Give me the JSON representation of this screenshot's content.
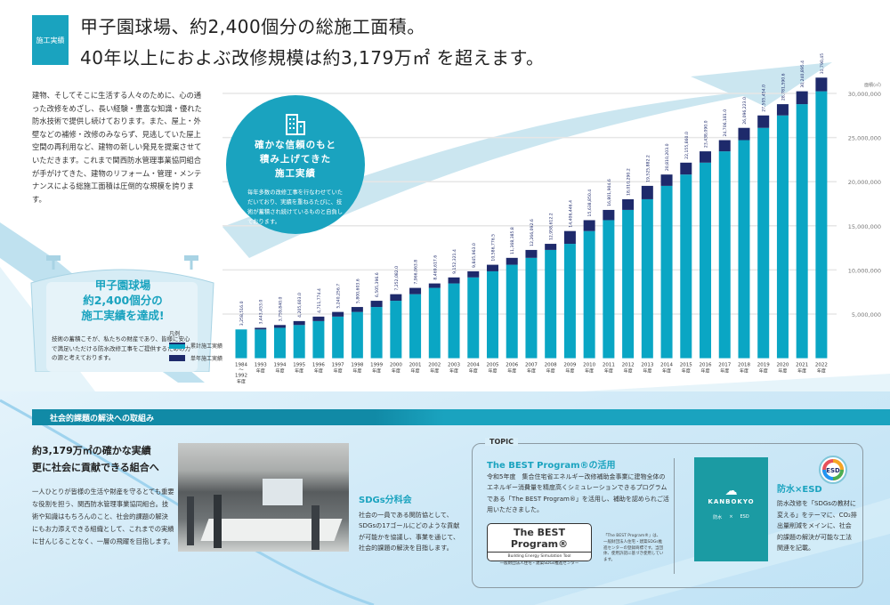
{
  "header": {
    "tag": "施工実績",
    "title_line1": "甲子園球場、約2,400個分の総施工面積。",
    "title_line2": "40年以上におよぶ改修規模は約3,179万㎡ を超えます。"
  },
  "intro": "建物、そしてそこに生活する人々のために、心の通った改修をめざし、長い経験・豊富な知識・優れた防水技術で提供し続けております。また、屋上・外壁などの補修・改修のみならず、見逃していた屋上空間の再利用など、建物の新しい発見を提案させていただきます。これまで関西防水管理事業協同組合が手がけてきた、建物のリフォーム・管理・メンテナンスによる総施工面積は圧倒的な規模を誇ります。",
  "circle": {
    "title_line1": "確かな信頼のもと",
    "title_line2": "積み上げてきた",
    "title_line3": "施工実績",
    "body": "毎年多数の改修工事を行なわせていただいており、実績を重ねるたびに、技術が蓄積され続けているものと自負しております。"
  },
  "stadium": {
    "line1": "甲子園球場",
    "line2": "約2,400個分の",
    "line3": "施工実績を達成!",
    "body": "技術の蓄積こそが、私たちの財産であり、皆様に安心で満足いただける防水改修工事をご提供するための力の源と考えております。"
  },
  "colors": {
    "accent": "#1aa3bf",
    "cumulative": "#0aa6c4",
    "annual": "#1e2a6b"
  },
  "chart_data": {
    "type": "bar",
    "stacked": true,
    "unit_label": "面積(㎡)",
    "legend_title": "凡例",
    "legend": [
      "累計施工実績",
      "単年施工実績"
    ],
    "ylim": [
      0,
      32000000
    ],
    "yticks": [
      "5,000,000",
      "10,000,000",
      "15,000,000",
      "20,000,000",
      "25,000,000",
      "30,000,000"
    ],
    "ytick_values": [
      5000000,
      10000000,
      15000000,
      20000000,
      25000000,
      30000000
    ],
    "year_suffix": "年度",
    "categories": [
      "1984～1992",
      "1993",
      "1994",
      "1995",
      "1996",
      "1997",
      "1998",
      "1999",
      "2000",
      "2001",
      "2002",
      "2003",
      "2004",
      "2005",
      "2006",
      "2007",
      "2008",
      "2009",
      "2010",
      "2011",
      "2012",
      "2013",
      "2014",
      "2015",
      "2016",
      "2017",
      "2018",
      "2019",
      "2020",
      "2021",
      "2022"
    ],
    "cumulative": [
      3258516.0,
      3443453.0,
      3759840.0,
      4205603.0,
      4711774.4,
      5240256.7,
      5800603.6,
      6505396.6,
      7252082.0,
      7966063.8,
      8469617.6,
      9152321.4,
      9845963.0,
      10586776.5,
      11368385.8,
      12266092.6,
      12958612.2,
      14406446.4,
      15638850.4,
      16801904.6,
      18010290.2,
      19525882.2,
      20810203.0,
      22155860.0,
      23438090.0,
      24706181.0,
      26096223.0,
      27505454.0,
      28781590.6,
      30240895.4,
      31790453.2
    ],
    "labels": [
      "3,258,516.0",
      "3,443,453.0",
      "3,759,840.0",
      "4,205,603.0",
      "4,711,774.4",
      "5,240,256.7",
      "5,800,603.6",
      "6,505,396.6",
      "7,252,082.0",
      "7,966,063.8",
      "8,469,617.6",
      "9,152,321.4",
      "9,845,963.0",
      "10,586,776.5",
      "11,368,385.8",
      "12,266,092.6",
      "12,958,612.2",
      "14,406,446.4",
      "15,638,850.4",
      "16,801,904.6",
      "18,010,290.2",
      "19,525,882.2",
      "20,810,203.0",
      "22,155,860.0",
      "23,438,090.0",
      "24,706,181.0",
      "26,096,223.0",
      "27,505,454.0",
      "28,781,590.6",
      "30,240,895.4",
      "31,790,453.2"
    ]
  },
  "social": {
    "banner": "社会的課題の解決への取組み",
    "headline1": "約3,179万㎡の確かな実績",
    "headline2": "更に社会に貢献できる組合へ",
    "body": "一人ひとりが皆様の生活や財産を守るとても重要な役割を担う、関西防水管理事業協同組合。技術や知識はもちろんのこと、社会的課題の解決にもお力添えできる組織として、これまでの実績に甘んじることなく、一層の飛躍を目指します。"
  },
  "sdgs": {
    "title": "SDGs分科会",
    "body": "社会の一員である関防協として、SDGsの17ゴールにどのような貢献が可能かを協議し、事業を通じて、社会的課題の解決を目指します。"
  },
  "topic": {
    "label": "TOPIC",
    "best_title": "The BEST Program®の活用",
    "best_body": "令和5年度　集合住宅省エネルギー改修補助金事業に建物全体のエネルギー消費量を精度高くシミュレーションできるプログラムである「The BEST Program®」を活用し、補助を認められご活用いただきました。",
    "logo_title": "The BEST Program®",
    "logo_sub": "Building Energy Simulation Tool",
    "logo_org": "一般財団法人住宅・建築SDGs推進センター",
    "note": "「The BEST Program®」は、一般財団法人住宅・建築SDGs推進センターの登録商標です。当団体、使用許諾に基づき使用しています。",
    "book_brand": "KANBOKYO",
    "book_left": "防水",
    "book_right": "ESD",
    "esd_badge": "ESD",
    "esd_title": "防水×ESD",
    "esd_body": "防水改修を「SDGsの教材に変える」をテーマに、CO₂排出量削減をメインに、社会的課題の解決が可能な工法関連を記載。"
  }
}
